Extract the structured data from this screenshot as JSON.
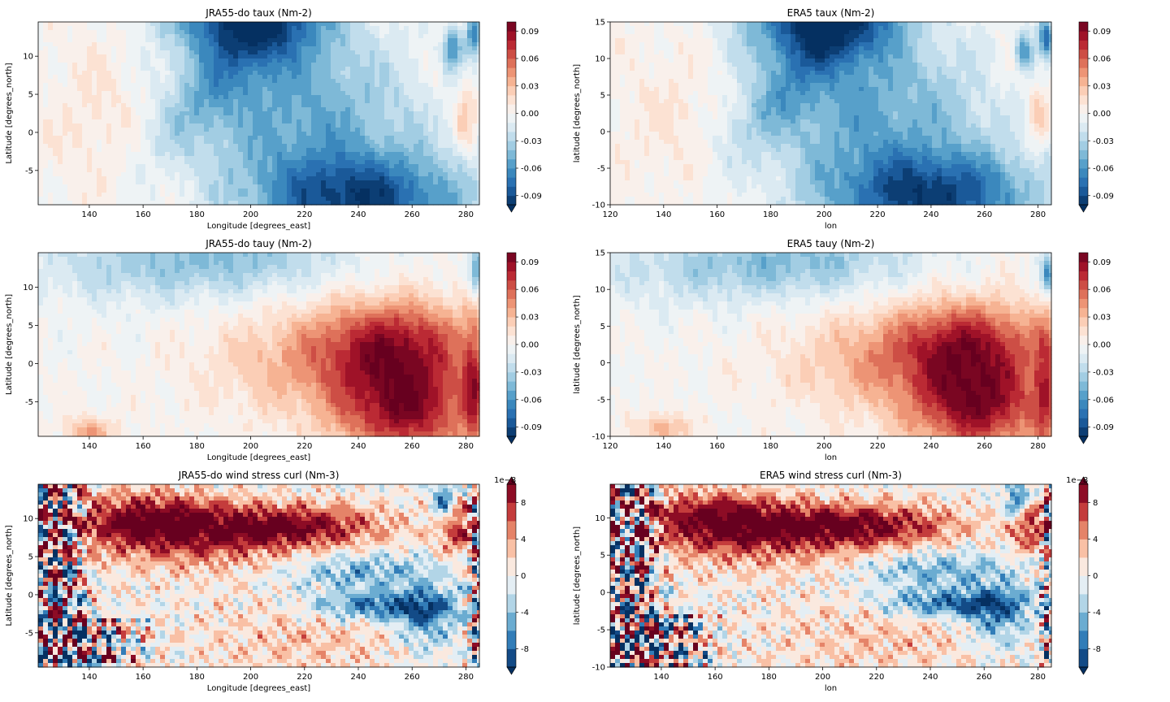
{
  "colormap": {
    "name": "RdBu_r",
    "stops": [
      "#053061",
      "#2166ac",
      "#4393c3",
      "#92c5de",
      "#d1e5f0",
      "#f7f7f7",
      "#fddbc7",
      "#f4a582",
      "#d6604d",
      "#b2182b",
      "#67001f"
    ]
  },
  "chart_data": [
    {
      "type": "heatmap",
      "panel": "jra-taux",
      "title": "JRA55-do taux (Nm-2)",
      "xlabel": "Longitude [degrees_east]",
      "ylabel": "Latitude [degrees_north]",
      "xlim": [
        121,
        285
      ],
      "ylim": [
        -9.5,
        14.5
      ],
      "xticks": [
        140,
        160,
        180,
        200,
        220,
        240,
        260,
        280
      ],
      "yticks": [
        -5,
        0,
        5,
        10
      ],
      "colorbar": {
        "vmin": -0.1,
        "vmax": 0.1,
        "ticks": [
          "-0.09",
          "-0.06",
          "-0.03",
          "0.00",
          "0.03",
          "0.06",
          "0.09"
        ],
        "tick_values": [
          -0.09,
          -0.06,
          -0.03,
          0,
          0.03,
          0.06,
          0.09
        ],
        "levels": 20,
        "extend": "min",
        "exponent": ""
      },
      "field": "taux"
    },
    {
      "type": "heatmap",
      "panel": "era-taux",
      "title": "ERA5 taux (Nm-2)",
      "xlabel": "lon",
      "ylabel": "latitude [degrees_north]",
      "xlim": [
        120,
        285
      ],
      "ylim": [
        -10,
        15
      ],
      "xticks": [
        120,
        140,
        160,
        180,
        200,
        220,
        240,
        260,
        280
      ],
      "yticks": [
        -10,
        -5,
        0,
        5,
        10,
        15
      ],
      "colorbar": {
        "vmin": -0.1,
        "vmax": 0.1,
        "ticks": [
          "-0.09",
          "-0.06",
          "-0.03",
          "0.00",
          "0.03",
          "0.06",
          "0.09"
        ],
        "tick_values": [
          -0.09,
          -0.06,
          -0.03,
          0,
          0.03,
          0.06,
          0.09
        ],
        "levels": 20,
        "extend": "min",
        "exponent": ""
      },
      "field": "taux"
    },
    {
      "type": "heatmap",
      "panel": "jra-tauy",
      "title": "JRA55-do tauy (Nm-2)",
      "xlabel": "Longitude [degrees_east]",
      "ylabel": "Latitude [degrees_north]",
      "xlim": [
        121,
        285
      ],
      "ylim": [
        -9.5,
        14.5
      ],
      "xticks": [
        140,
        160,
        180,
        200,
        220,
        240,
        260,
        280
      ],
      "yticks": [
        -5,
        0,
        5,
        10
      ],
      "colorbar": {
        "vmin": -0.1,
        "vmax": 0.1,
        "ticks": [
          "-0.09",
          "-0.06",
          "-0.03",
          "0.00",
          "0.03",
          "0.06",
          "0.09"
        ],
        "tick_values": [
          -0.09,
          -0.06,
          -0.03,
          0,
          0.03,
          0.06,
          0.09
        ],
        "levels": 20,
        "extend": "min",
        "exponent": ""
      },
      "field": "tauy"
    },
    {
      "type": "heatmap",
      "panel": "era-tauy",
      "title": "ERA5 tauy (Nm-2)",
      "xlabel": "lon",
      "ylabel": "latitude [degrees_north]",
      "xlim": [
        120,
        285
      ],
      "ylim": [
        -10,
        15
      ],
      "xticks": [
        120,
        140,
        160,
        180,
        200,
        220,
        240,
        260,
        280
      ],
      "yticks": [
        -10,
        -5,
        0,
        5,
        10,
        15
      ],
      "colorbar": {
        "vmin": -0.1,
        "vmax": 0.1,
        "ticks": [
          "-0.09",
          "-0.06",
          "-0.03",
          "0.00",
          "0.03",
          "0.06",
          "0.09"
        ],
        "tick_values": [
          -0.09,
          -0.06,
          -0.03,
          0,
          0.03,
          0.06,
          0.09
        ],
        "levels": 20,
        "extend": "min",
        "exponent": ""
      },
      "field": "tauy"
    },
    {
      "type": "heatmap",
      "panel": "jra-curl",
      "title": "JRA55-do wind stress curl (Nm-3)",
      "xlabel": "Longitude [degrees_east]",
      "ylabel": "Latitude [degrees_north]",
      "xlim": [
        121,
        285
      ],
      "ylim": [
        -9.5,
        14.5
      ],
      "xticks": [
        140,
        160,
        180,
        200,
        220,
        240,
        260,
        280
      ],
      "yticks": [
        -5,
        0,
        5,
        10
      ],
      "colorbar": {
        "vmin": -10,
        "vmax": 10,
        "ticks": [
          "-8",
          "-4",
          "0",
          "4",
          "8"
        ],
        "tick_values": [
          -8,
          -4,
          0,
          4,
          8
        ],
        "levels": 10,
        "extend": "both",
        "exponent": "1e−8"
      },
      "field": "curl"
    },
    {
      "type": "heatmap",
      "panel": "era-curl",
      "title": "ERA5 wind stress curl (Nm-3)",
      "xlabel": "lon",
      "ylabel": "latitude [degrees_north]",
      "xlim": [
        121,
        285
      ],
      "ylim": [
        -10,
        14.5
      ],
      "xticks": [
        140,
        160,
        180,
        200,
        220,
        240,
        260,
        280
      ],
      "yticks": [
        -10,
        -5,
        0,
        5,
        10
      ],
      "colorbar": {
        "vmin": -10,
        "vmax": 10,
        "ticks": [
          "-8",
          "-4",
          "0",
          "4",
          "8"
        ],
        "tick_values": [
          -8,
          -4,
          0,
          4,
          8
        ],
        "levels": 10,
        "extend": "both",
        "exponent": "1e−8"
      },
      "field": "curl"
    }
  ]
}
